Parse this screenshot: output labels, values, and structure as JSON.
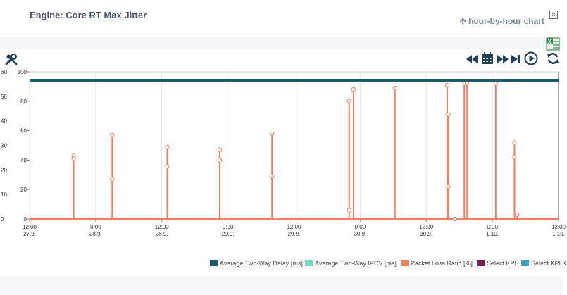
{
  "header": {
    "title": "Engine: Core RT Max Jitter",
    "hourly_link": "hour-by-hour chart",
    "close_glyph": "×"
  },
  "toolbar": {
    "icons": [
      "wrench-icon",
      "excel-export-icon",
      "rewind-icon",
      "calendar-icon",
      "fast-forward-icon",
      "skip-end-icon",
      "play-icon",
      "refresh-icon"
    ]
  },
  "chart_data": {
    "type": "line",
    "ylim_left": [
      0,
      100
    ],
    "ylim_outer": [
      0,
      60
    ],
    "yticks_left": [
      "0",
      "20",
      "40",
      "60",
      "80",
      "100"
    ],
    "yticks_outer": [
      "0",
      "10",
      "20",
      "30",
      "40",
      "50",
      "60"
    ],
    "xticks": [
      {
        "time": "12:00",
        "date": "27.9."
      },
      {
        "time": "0:00",
        "date": "28.9."
      },
      {
        "time": "12:00",
        "date": "28.9."
      },
      {
        "time": "0:00",
        "date": "29.9."
      },
      {
        "time": "12:00",
        "date": "29.9."
      },
      {
        "time": "0:00",
        "date": "30.9."
      },
      {
        "time": "12:00",
        "date": "30.9."
      },
      {
        "time": "0:00",
        "date": "1.10."
      },
      {
        "time": "12:00",
        "date": "1.10."
      }
    ],
    "x_range_hours": [
      0,
      96
    ],
    "series": [
      {
        "name": "Average Two-Way Delay [ms]",
        "color": "#215a6d",
        "points": [
          [
            0,
            94
          ],
          [
            6,
            94
          ],
          [
            12,
            94
          ],
          [
            18,
            94
          ],
          [
            24,
            94
          ],
          [
            30,
            94
          ],
          [
            36,
            94
          ],
          [
            42,
            94
          ],
          [
            48,
            94
          ],
          [
            54,
            94
          ],
          [
            60,
            94
          ],
          [
            66,
            94
          ],
          [
            72,
            94
          ],
          [
            78,
            94
          ],
          [
            84,
            94
          ],
          [
            90,
            94
          ],
          [
            96,
            94
          ]
        ]
      },
      {
        "name": "Packet Loss Ratio [%]",
        "color": "#f08060",
        "spikes": [
          [
            8.0,
            43,
            41
          ],
          [
            15.0,
            57,
            27
          ],
          [
            25.0,
            49,
            36
          ],
          [
            34.5,
            47,
            40
          ],
          [
            44.0,
            58,
            29
          ],
          [
            58.0,
            80,
            6
          ],
          [
            58.8,
            88,
            0
          ],
          [
            66.3,
            89,
            0
          ],
          [
            75.8,
            91,
            0
          ],
          [
            76.0,
            71,
            22
          ],
          [
            77.2,
            0,
            0
          ],
          [
            78.9,
            92,
            0
          ],
          [
            79.4,
            92,
            0
          ],
          [
            84.6,
            92,
            0
          ],
          [
            88.0,
            52,
            42
          ],
          [
            88.5,
            3,
            0
          ]
        ]
      }
    ],
    "legend": [
      {
        "label": "Average Two-Way Delay [ms]",
        "color": "#215a6d"
      },
      {
        "label": "Average Two-Way IPDV [ms]",
        "color": "#74d9c1"
      },
      {
        "label": "Packet Loss Ratio [%]",
        "color": "#f08060"
      },
      {
        "label": "Select KPI",
        "color": "#7c1f4a"
      },
      {
        "label": "Select KPI K",
        "color": "#3aa0c8"
      }
    ]
  }
}
